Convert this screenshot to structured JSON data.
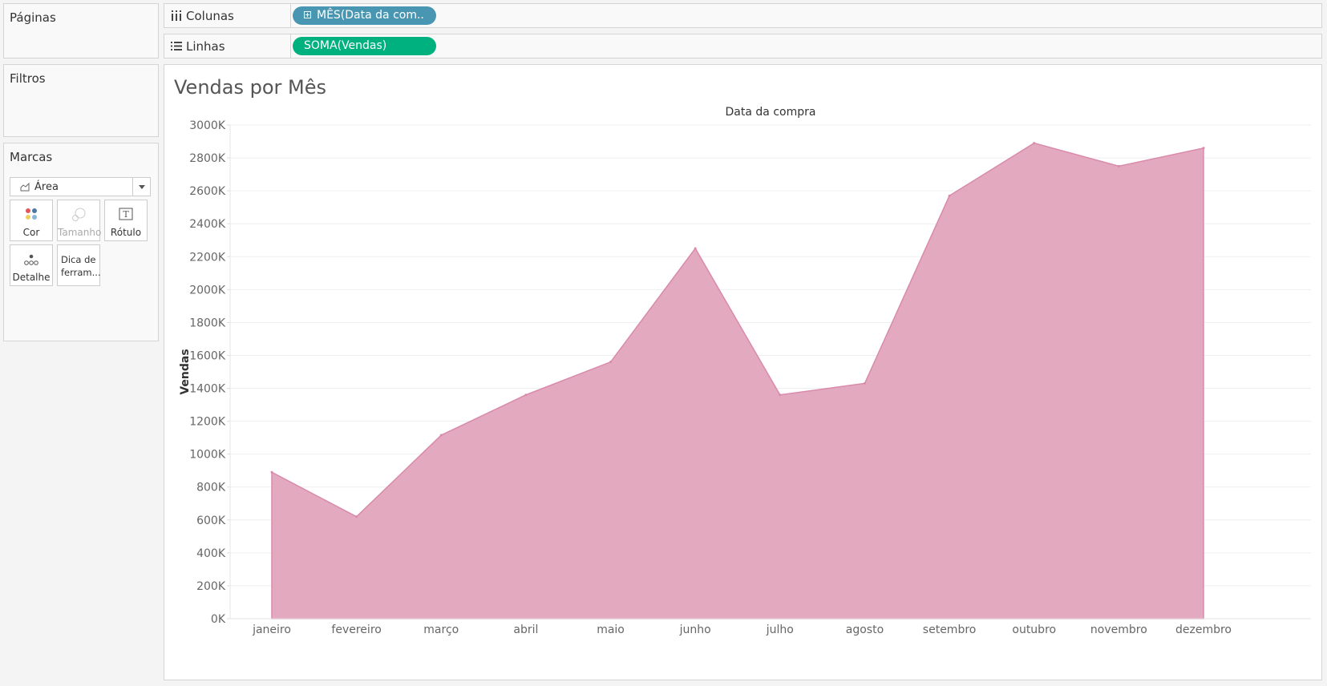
{
  "cards": {
    "pages_title": "Páginas",
    "filters_title": "Filtros",
    "marks_title": "Marcas"
  },
  "marks": {
    "type_label": "Área",
    "cards": [
      {
        "label": "Cor",
        "icon": "color-dots-icon",
        "enabled": true
      },
      {
        "label": "Tamanho",
        "icon": "size-circles-icon",
        "enabled": false
      },
      {
        "label": "Rótulo",
        "icon": "text-label-icon",
        "enabled": true
      },
      {
        "label": "Detalhe",
        "icon": "detail-dots-icon",
        "enabled": true
      },
      {
        "label": "Dica de ferram...",
        "icon": "",
        "enabled": true
      }
    ]
  },
  "shelves": {
    "columns_label": "Colunas",
    "columns_pill": "MÊS(Data da com..",
    "rows_label": "Linhas",
    "rows_pill": "SOMA(Vendas)"
  },
  "colors": {
    "dimension_pill": "#4996b2",
    "measure_pill": "#00b180",
    "area_fill": "#e0a0b8",
    "area_stroke": "#d98aab"
  },
  "chart_data": {
    "type": "area",
    "title": "Vendas por Mês",
    "xlabel": "Data da compra",
    "ylabel": "Vendas",
    "categories": [
      "janeiro",
      "fevereiro",
      "março",
      "abril",
      "maio",
      "junho",
      "julho",
      "agosto",
      "setembro",
      "outubro",
      "novembro",
      "dezembro"
    ],
    "values": [
      890000,
      620000,
      1115000,
      1360000,
      1560000,
      2250000,
      1360000,
      1430000,
      2570000,
      2890000,
      2750000,
      2860000
    ],
    "ylim": [
      0,
      3000000
    ],
    "yticks": [
      0,
      200000,
      400000,
      600000,
      800000,
      1000000,
      1200000,
      1400000,
      1600000,
      1800000,
      2000000,
      2200000,
      2400000,
      2600000,
      2800000,
      3000000
    ],
    "ytick_labels": [
      "0K",
      "200K",
      "400K",
      "600K",
      "800K",
      "1000K",
      "1200K",
      "1400K",
      "1600K",
      "1800K",
      "2000K",
      "2200K",
      "2400K",
      "2600K",
      "2800K",
      "3000K"
    ],
    "grid": true,
    "legend": "none"
  }
}
